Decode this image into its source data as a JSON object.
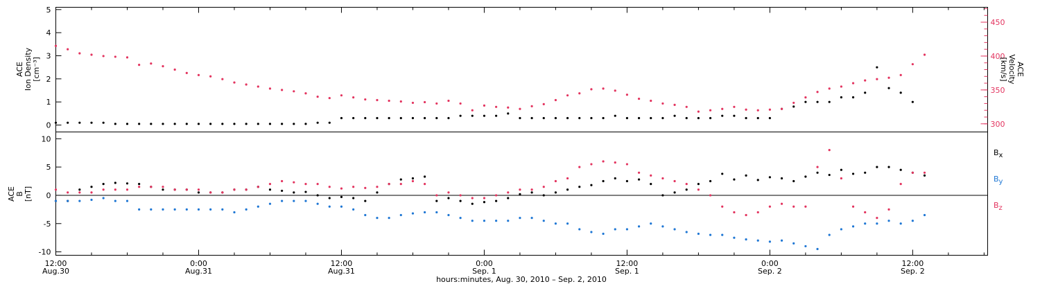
{
  "chart_data": [
    {
      "type": "scatter",
      "panel": "top",
      "ylabel_left": [
        "ACE",
        "Ion Density",
        "[cm⁻³]"
      ],
      "ylabel_right": [
        "ACE",
        "Velocity",
        "[km/s]"
      ],
      "ylim_left": [
        -0.3,
        5.1
      ],
      "ylim_right": [
        288,
        472
      ],
      "yticks_left": [
        0,
        1,
        2,
        3,
        4,
        5
      ],
      "yticks_right": [
        300,
        350,
        400,
        450
      ],
      "colors": {
        "density": "#000000",
        "velocity": "#e3345f"
      },
      "series": [
        {
          "name": "Ion Density",
          "axis": "left",
          "color": "#000000",
          "x": [
            0,
            1,
            2,
            3,
            4,
            5,
            6,
            7,
            8,
            9,
            10,
            11,
            12,
            13,
            14,
            15,
            16,
            17,
            18,
            19,
            20,
            21,
            22,
            23,
            24,
            25,
            26,
            27,
            28,
            29,
            30,
            31,
            32,
            33,
            34,
            35,
            36,
            37,
            38,
            39,
            40,
            41,
            42,
            43,
            44,
            45,
            46,
            47,
            48,
            49,
            50,
            51,
            52,
            53,
            54,
            55,
            56,
            57,
            58,
            59,
            60,
            61,
            62,
            63,
            64,
            65,
            66,
            67,
            68,
            69,
            70,
            71,
            72
          ],
          "y": [
            0.1,
            0.1,
            0.1,
            0.1,
            0.1,
            0.05,
            0.05,
            0.05,
            0.05,
            0.05,
            0.05,
            0.05,
            0.05,
            0.05,
            0.05,
            0.05,
            0.05,
            0.05,
            0.05,
            0.05,
            0.05,
            0.05,
            0.1,
            0.1,
            0.3,
            0.3,
            0.3,
            0.3,
            0.3,
            0.3,
            0.3,
            0.3,
            0.3,
            0.3,
            0.4,
            0.4,
            0.4,
            0.4,
            0.5,
            0.3,
            0.3,
            0.3,
            0.3,
            0.3,
            0.3,
            0.3,
            0.3,
            0.4,
            0.3,
            0.3,
            0.3,
            0.3,
            0.4,
            0.3,
            0.3,
            0.3,
            0.4,
            0.4,
            0.3,
            0.3,
            0.3,
            0.7,
            0.8,
            1.0,
            1.0,
            1.0,
            1.2,
            1.2,
            1.4,
            2.5,
            1.6,
            1.4,
            1.0
          ]
        },
        {
          "name": "Velocity",
          "axis": "right",
          "color": "#e3345f",
          "x": [
            0,
            1,
            2,
            3,
            4,
            5,
            6,
            7,
            8,
            9,
            10,
            11,
            12,
            13,
            14,
            15,
            16,
            17,
            18,
            19,
            20,
            21,
            22,
            23,
            24,
            25,
            26,
            27,
            28,
            29,
            30,
            31,
            32,
            33,
            34,
            35,
            36,
            37,
            38,
            39,
            40,
            41,
            42,
            43,
            44,
            45,
            46,
            47,
            48,
            49,
            50,
            51,
            52,
            53,
            54,
            55,
            56,
            57,
            58,
            59,
            60,
            61,
            62,
            63,
            64,
            65,
            66,
            67,
            68,
            69,
            70,
            71,
            72,
            73
          ],
          "y": [
            415,
            410,
            404,
            402,
            400,
            399,
            398,
            387,
            389,
            385,
            380,
            375,
            372,
            370,
            366,
            361,
            358,
            355,
            352,
            350,
            348,
            345,
            340,
            338,
            342,
            339,
            336,
            335,
            334,
            333,
            331,
            332,
            330,
            334,
            330,
            320,
            327,
            325,
            324,
            322,
            326,
            329,
            335,
            342,
            345,
            351,
            352,
            349,
            343,
            337,
            334,
            330,
            328,
            325,
            318,
            320,
            322,
            325,
            321,
            320,
            321,
            322,
            331,
            339,
            347,
            352,
            355,
            360,
            364,
            366,
            368,
            372,
            388,
            402
          ]
        }
      ]
    },
    {
      "type": "scatter",
      "panel": "bottom",
      "ylabel": [
        "ACE",
        "B",
        "[nT]"
      ],
      "ylim": [
        -10.6,
        11.2
      ],
      "yticks": [
        -10,
        -5,
        0,
        5,
        10
      ],
      "zero_line": true,
      "legend_placement": "right",
      "legend": [
        {
          "name": "Bx",
          "label": "B",
          "sub": "x",
          "color": "#000000"
        },
        {
          "name": "By",
          "label": "B",
          "sub": "y",
          "color": "#1f77d4"
        },
        {
          "name": "Bz",
          "label": "B",
          "sub": "z",
          "color": "#e3345f"
        }
      ],
      "series": [
        {
          "name": "Bx",
          "color": "#000000",
          "x": [
            0,
            1,
            2,
            3,
            4,
            5,
            6,
            7,
            8,
            9,
            10,
            11,
            12,
            13,
            14,
            15,
            16,
            17,
            18,
            19,
            20,
            21,
            22,
            23,
            24,
            25,
            26,
            27,
            28,
            29,
            30,
            31,
            32,
            33,
            34,
            35,
            36,
            37,
            38,
            39,
            40,
            41,
            42,
            43,
            44,
            45,
            46,
            47,
            48,
            49,
            50,
            51,
            52,
            53,
            54,
            55,
            56,
            57,
            58,
            59,
            60,
            61,
            62,
            63,
            64,
            65,
            66,
            67,
            68,
            69,
            70,
            71,
            72,
            73
          ],
          "y": [
            -1,
            -1,
            1,
            1.5,
            2,
            2.2,
            2.1,
            2,
            1.5,
            1,
            1,
            1,
            0.5,
            0.5,
            0.5,
            1,
            1,
            1.5,
            1,
            0.8,
            0.5,
            0.6,
            0,
            -0.5,
            -0.3,
            -0.5,
            -1,
            0.5,
            2,
            2.8,
            3,
            3.3,
            -1,
            -0.5,
            -1,
            -1.5,
            -1.2,
            -1,
            -0.5,
            0.2,
            0.5,
            0,
            0.5,
            1,
            1.5,
            1.8,
            2.5,
            3,
            2.5,
            2.8,
            2,
            0,
            0.5,
            1,
            2,
            2.5,
            3.8,
            2.8,
            3.5,
            2.7,
            3.2,
            3,
            2.5,
            3.3,
            4,
            3.6,
            4.5,
            3.8,
            4,
            5,
            5,
            4.5,
            4,
            3.5
          ]
        },
        {
          "name": "By",
          "color": "#1f77d4",
          "x": [
            0,
            1,
            2,
            3,
            4,
            5,
            6,
            7,
            8,
            9,
            10,
            11,
            12,
            13,
            14,
            15,
            16,
            17,
            18,
            19,
            20,
            21,
            22,
            23,
            24,
            25,
            26,
            27,
            28,
            29,
            30,
            31,
            32,
            33,
            34,
            35,
            36,
            37,
            38,
            39,
            40,
            41,
            42,
            43,
            44,
            45,
            46,
            47,
            48,
            49,
            50,
            51,
            52,
            53,
            54,
            55,
            56,
            57,
            58,
            59,
            60,
            61,
            62,
            63,
            64,
            65,
            66,
            67,
            68,
            69,
            70,
            71,
            72,
            73
          ],
          "y": [
            -1,
            -1,
            -1,
            -0.8,
            -0.5,
            -1,
            -1,
            -2.5,
            -2.5,
            -2.5,
            -2.5,
            -2.5,
            -2.5,
            -2.5,
            -2.5,
            -3,
            -2.5,
            -2,
            -1.5,
            -1,
            -1,
            -1,
            -1.5,
            -2,
            -2,
            -2.5,
            -3.5,
            -4,
            -4,
            -3.5,
            -3.2,
            -3,
            -3,
            -3.5,
            -4,
            -4.5,
            -4.5,
            -4.5,
            -4.5,
            -4,
            -4,
            -4.5,
            -5,
            -5,
            -6,
            -6.5,
            -6.8,
            -6,
            -6,
            -5.5,
            -5,
            -5.5,
            -6,
            -6.5,
            -6.8,
            -7,
            -7,
            -7.5,
            -7.8,
            -8,
            -8.2,
            -8,
            -8.5,
            -9,
            -9.5,
            -7,
            -6,
            -5.5,
            -5,
            -5,
            -4.5,
            -5,
            -4.5,
            -3.5
          ]
        },
        {
          "name": "Bz",
          "color": "#e3345f",
          "x": [
            0,
            1,
            2,
            3,
            4,
            5,
            6,
            7,
            8,
            9,
            10,
            11,
            12,
            13,
            14,
            15,
            16,
            17,
            18,
            19,
            20,
            21,
            22,
            23,
            24,
            25,
            26,
            27,
            28,
            29,
            30,
            31,
            32,
            33,
            34,
            35,
            36,
            37,
            38,
            39,
            40,
            41,
            42,
            43,
            44,
            45,
            46,
            47,
            48,
            49,
            50,
            51,
            52,
            53,
            54,
            55,
            56,
            57,
            58,
            59,
            60,
            61,
            62,
            63,
            64,
            65,
            66,
            67,
            68,
            69,
            70,
            71,
            72,
            73
          ],
          "y": [
            1,
            0.5,
            0.5,
            0.5,
            1,
            1,
            1,
            1.5,
            1.5,
            1.5,
            1,
            1,
            1,
            0.5,
            0.5,
            1,
            1,
            1.5,
            2,
            2.5,
            2.3,
            2,
            2,
            1.5,
            1.2,
            1.5,
            1.3,
            1.5,
            2,
            2,
            2.5,
            2,
            0,
            0.5,
            0,
            -0.5,
            -0.5,
            0,
            0.5,
            1,
            1,
            1.5,
            2.5,
            3,
            5,
            5.5,
            6,
            5.8,
            5.5,
            4,
            3.5,
            3,
            2.5,
            2,
            1,
            0,
            -2,
            -3,
            -3.5,
            -3,
            -2,
            -1.5,
            -2,
            -2,
            5,
            8,
            3,
            -2,
            -3,
            -4,
            -2.5,
            2,
            4,
            4
          ]
        }
      ]
    }
  ],
  "x_axis": {
    "title": "hours:minutes, Aug. 30, 2010 – Sep.  2, 2010",
    "xlim_hours": [
      0,
      78.3
    ],
    "ticks": [
      {
        "hour": 0,
        "time": "12:00",
        "date": "Aug.30"
      },
      {
        "hour": 12,
        "time": "0:00",
        "date": "Aug.31"
      },
      {
        "hour": 24,
        "time": "12:00",
        "date": "Aug.31"
      },
      {
        "hour": 36,
        "time": "0:00",
        "date": "Sep. 1"
      },
      {
        "hour": 48,
        "time": "12:00",
        "date": "Sep. 1"
      },
      {
        "hour": 60,
        "time": "0:00",
        "date": "Sep. 2"
      },
      {
        "hour": 72,
        "time": "12:00",
        "date": "Sep. 2"
      }
    ]
  }
}
